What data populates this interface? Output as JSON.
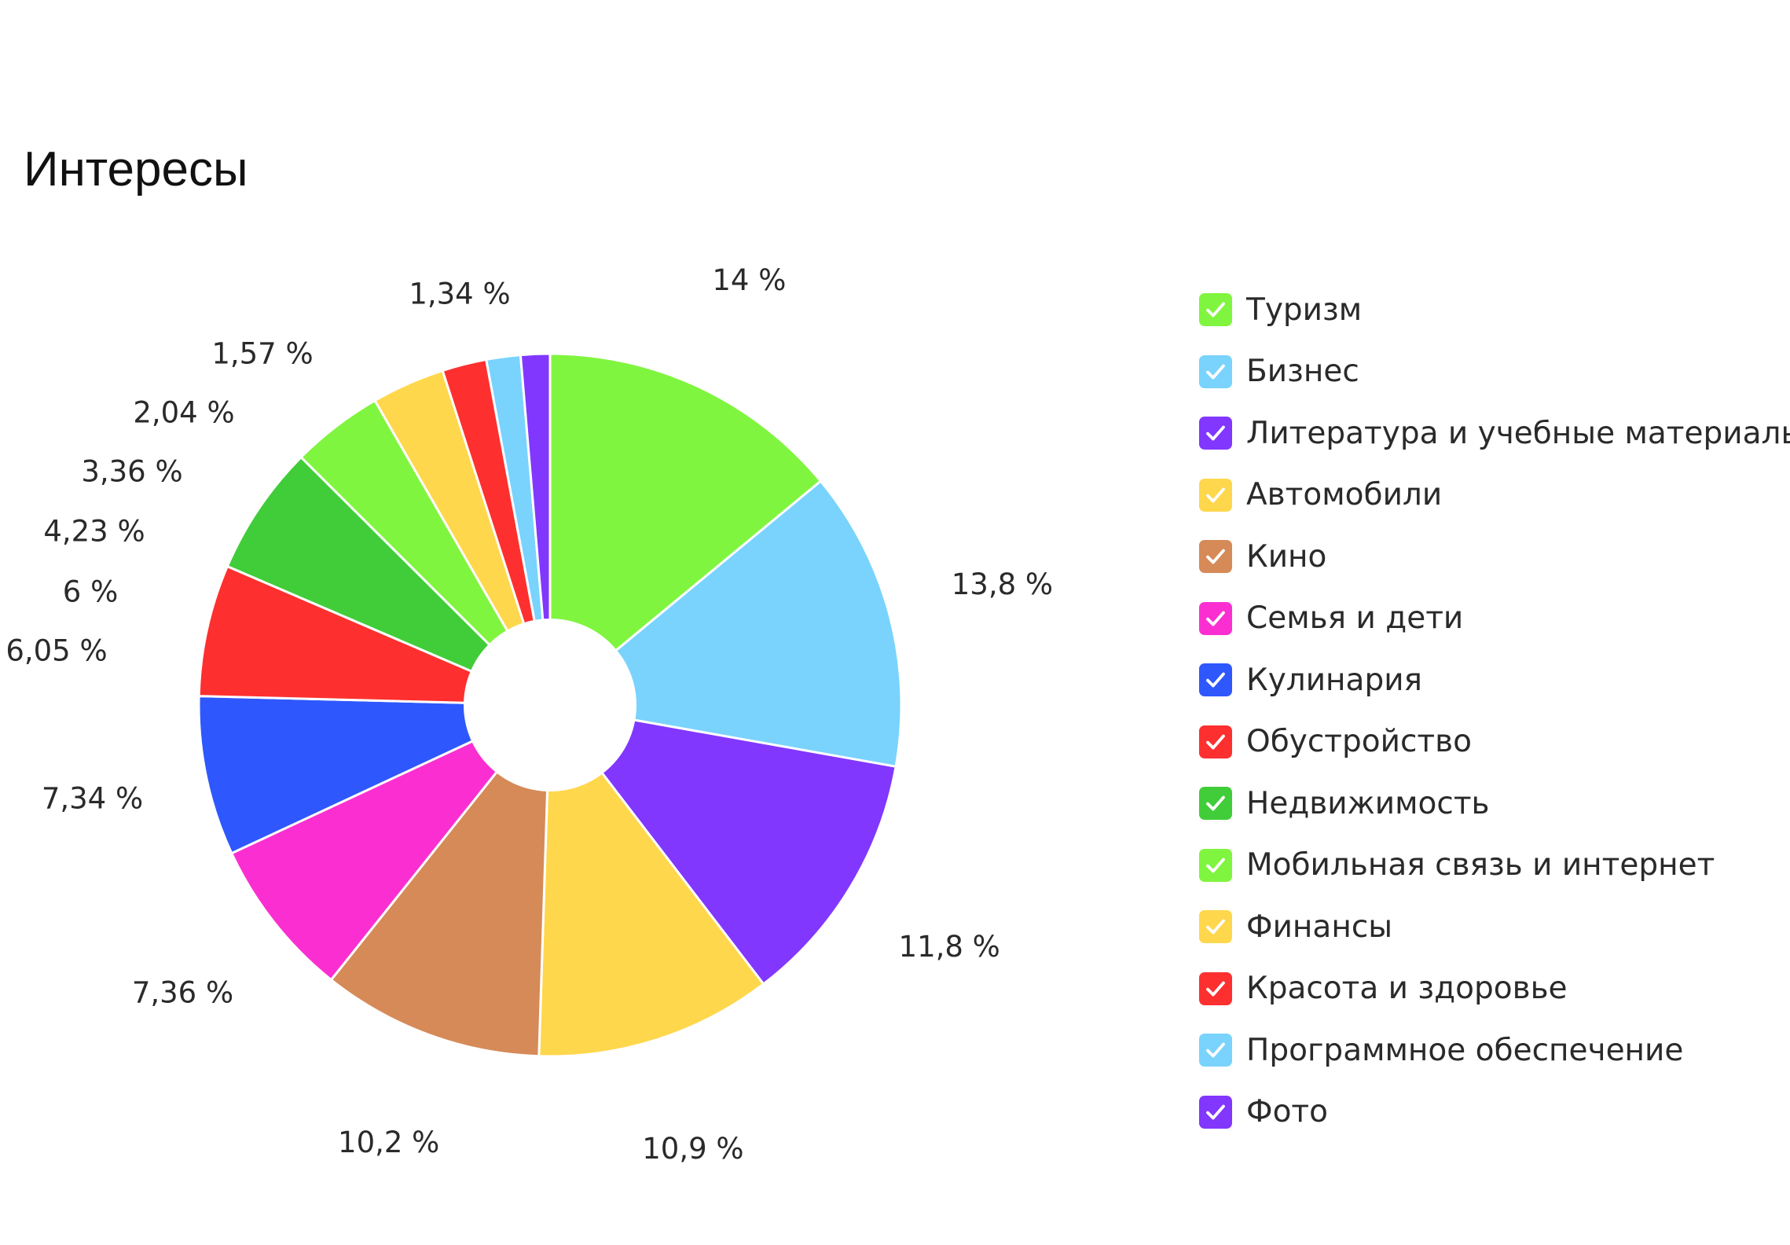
{
  "chart_data": {
    "type": "pie",
    "title": "Интересы",
    "donut": true,
    "legend_position": "right",
    "slices": [
      {
        "label": "Туризм",
        "value": 14,
        "value_label": "14 %",
        "color": "#80f53f"
      },
      {
        "label": "Бизнес",
        "value": 13.8,
        "value_label": "13,8 %",
        "color": "#79d3fd"
      },
      {
        "label": "Литература и учебные материалы",
        "value": 11.8,
        "value_label": "11,8 %",
        "color": "#8137fe"
      },
      {
        "label": "Автомобили",
        "value": 10.9,
        "value_label": "10,9 %",
        "color": "#ffd74c"
      },
      {
        "label": "Кино",
        "value": 10.2,
        "value_label": "10,2 %",
        "color": "#d58a58"
      },
      {
        "label": "Семья и дети",
        "value": 7.36,
        "value_label": "7,36 %",
        "color": "#fb2fd1"
      },
      {
        "label": "Кулинария",
        "value": 7.34,
        "value_label": "7,34 %",
        "color": "#2e58fd"
      },
      {
        "label": "Обустройство",
        "value": 6.05,
        "value_label": "6,05 %",
        "color": "#fd302f"
      },
      {
        "label": "Недвижимость",
        "value": 6,
        "value_label": "6 %",
        "color": "#41cd39"
      },
      {
        "label": "Мобильная связь и интернет",
        "value": 4.23,
        "value_label": "4,23 %",
        "color": "#80f53f"
      },
      {
        "label": "Финансы",
        "value": 3.36,
        "value_label": "3,36 %",
        "color": "#ffd74c"
      },
      {
        "label": "Красота и здоровье",
        "value": 2.04,
        "value_label": "2,04 %",
        "color": "#fd302f"
      },
      {
        "label": "Программное обеспечение",
        "value": 1.57,
        "value_label": "1,57 %",
        "color": "#79d3fd"
      },
      {
        "label": "Фото",
        "value": 1.34,
        "value_label": "1,34 %",
        "color": "#8137fe"
      }
    ]
  },
  "legend": {
    "check_icon": "check-icon"
  }
}
